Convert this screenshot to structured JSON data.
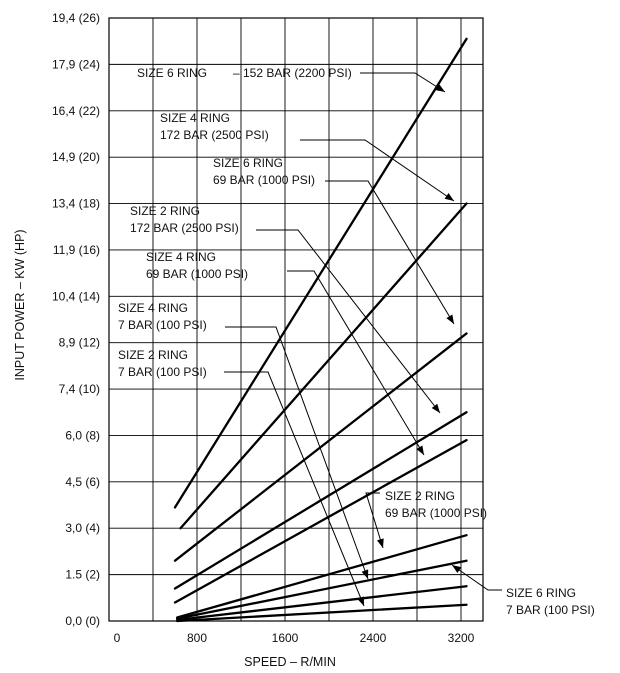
{
  "chart_data": {
    "type": "line",
    "xlabel": "SPEED   – R/MIN",
    "ylabel": "INPUT POWER   – KW (HP)",
    "xlim": [
      0,
      3400
    ],
    "ylim": [
      0,
      26
    ],
    "x_ticks": [
      {
        "value": 0,
        "label": "0"
      },
      {
        "value": 800,
        "label": "800"
      },
      {
        "value": 1600,
        "label": "1600"
      },
      {
        "value": 2400,
        "label": "2400"
      },
      {
        "value": 3200,
        "label": "3200"
      }
    ],
    "y_ticks": [
      {
        "value": 0,
        "label": "0,0 (0)"
      },
      {
        "value": 2,
        "label": "1.5 (2)"
      },
      {
        "value": 4,
        "label": "3,0 (4)"
      },
      {
        "value": 6,
        "label": "4,5 (6)"
      },
      {
        "value": 8,
        "label": "6,0 (8)"
      },
      {
        "value": 10,
        "label": "7,4 (10)"
      },
      {
        "value": 12,
        "label": "8,9 (12)"
      },
      {
        "value": 14,
        "label": "10,4 (14)"
      },
      {
        "value": 16,
        "label": "11,9 (16)"
      },
      {
        "value": 18,
        "label": "13,4 (18)"
      },
      {
        "value": 20,
        "label": "14,9 (20)"
      },
      {
        "value": 22,
        "label": "16,4 (22)"
      },
      {
        "value": 24,
        "label": "17,9 (24)"
      },
      {
        "value": 26,
        "label": "19,4 (26)"
      }
    ],
    "grid": true,
    "series": [
      {
        "name": "SIZE 6 RING – 152 BAR (2200 PSI)",
        "points": [
          [
            600,
            4.9
          ],
          [
            3250,
            25.1
          ]
        ]
      },
      {
        "name": "SIZE 4 RING 172 BAR (2500 PSI)",
        "points": [
          [
            650,
            4.0
          ],
          [
            3250,
            18.0
          ]
        ]
      },
      {
        "name": "SIZE 6 RING 69 BAR (1000 PSI)",
        "points": [
          [
            600,
            2.6
          ],
          [
            3250,
            12.4
          ]
        ]
      },
      {
        "name": "SIZE 2 RING 172 BAR (2500 PSI)",
        "points": [
          [
            600,
            1.4
          ],
          [
            3250,
            9.0
          ]
        ]
      },
      {
        "name": "SIZE 4 RING 69 BAR (1000 PSI)",
        "points": [
          [
            600,
            0.8
          ],
          [
            3250,
            7.8
          ]
        ]
      },
      {
        "name": "SIZE 2 RING 69 BAR (1000 PSI)",
        "points": [
          [
            620,
            0.15
          ],
          [
            3250,
            3.7
          ]
        ]
      },
      {
        "name": "SIZE 6 RING 7 BAR (100 PSI)",
        "points": [
          [
            620,
            0.1
          ],
          [
            3250,
            2.6
          ]
        ]
      },
      {
        "name": "SIZE 4 RING 7 BAR (100 PSI)",
        "points": [
          [
            620,
            0.05
          ],
          [
            3250,
            1.5
          ]
        ]
      },
      {
        "name": "SIZE 2 RING 7 BAR (100 PSI)",
        "points": [
          [
            620,
            0.0
          ],
          [
            3250,
            0.7
          ]
        ]
      }
    ],
    "annotations": [
      {
        "lines": [
          "SIZE 6 RING",
          "– 152 BAR (2200 PSI)"
        ]
      },
      {
        "lines": [
          "SIZE 4 RING",
          "172 BAR (2500 PSI)"
        ]
      },
      {
        "lines": [
          "SIZE 6 RING",
          "69 BAR (1000 PSI)"
        ]
      },
      {
        "lines": [
          "SIZE 2 RING",
          "172 BAR (2500 PSI)"
        ]
      },
      {
        "lines": [
          "SIZE 4 RING",
          "69 BAR (1000 PSI)"
        ]
      },
      {
        "lines": [
          "SIZE 4 RING",
          "7 BAR (100 PSI)"
        ]
      },
      {
        "lines": [
          "SIZE 2 RING",
          "7 BAR (100 PSI)"
        ]
      },
      {
        "lines": [
          "SIZE 2 RING",
          "69 BAR (1000 PSI)"
        ]
      },
      {
        "lines": [
          "SIZE 6 RING",
          "7 BAR (100 PSI)"
        ]
      }
    ]
  }
}
